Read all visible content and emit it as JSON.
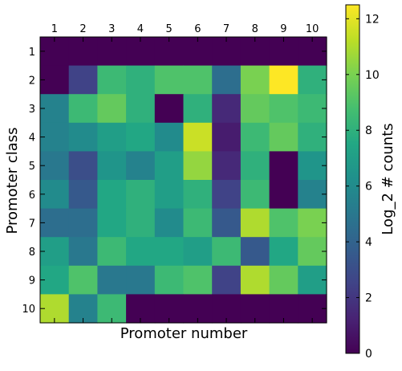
{
  "chart_data": {
    "type": "heatmap",
    "xlabel": "Promoter number",
    "ylabel": "Promoter class",
    "colorbar_label": "Log_2 # counts",
    "x_categories": [
      "1",
      "2",
      "3",
      "4",
      "5",
      "6",
      "7",
      "8",
      "9",
      "10"
    ],
    "y_categories": [
      "1",
      "2",
      "3",
      "4",
      "5",
      "6",
      "7",
      "8",
      "9",
      "10"
    ],
    "x_tick_position": "top",
    "colorbar_ticks": [
      "0",
      "2",
      "4",
      "6",
      "8",
      "10",
      "12"
    ],
    "colorbar_range": [
      0,
      12.5
    ],
    "colormap": "viridis",
    "values": [
      [
        0,
        0,
        0,
        0,
        0,
        0,
        0,
        0,
        0,
        0
      ],
      [
        0,
        2.5,
        8.5,
        8,
        9,
        9,
        4.5,
        10,
        12.5,
        8
      ],
      [
        5.5,
        8.5,
        9.5,
        8,
        0,
        8,
        1.5,
        9.5,
        9,
        8.5
      ],
      [
        5.5,
        6,
        7,
        7.5,
        6,
        11.5,
        1,
        8.5,
        9.5,
        8
      ],
      [
        5,
        3,
        6.5,
        5.5,
        7,
        10.5,
        1.5,
        8,
        0,
        6.5
      ],
      [
        6,
        3.5,
        7.5,
        8,
        7,
        8,
        2.5,
        8.5,
        0,
        5.5
      ],
      [
        4.5,
        4.5,
        7.5,
        8,
        6,
        8.5,
        3.5,
        11,
        9,
        10
      ],
      [
        7,
        5,
        8.5,
        7.5,
        7.5,
        7,
        8.5,
        3.5,
        7.5,
        9.5
      ],
      [
        7.5,
        9,
        5,
        5,
        8.5,
        9,
        2.5,
        11,
        9.5,
        7
      ],
      [
        11,
        5.5,
        8.5,
        0,
        0,
        0,
        0,
        0,
        0,
        0
      ]
    ]
  }
}
